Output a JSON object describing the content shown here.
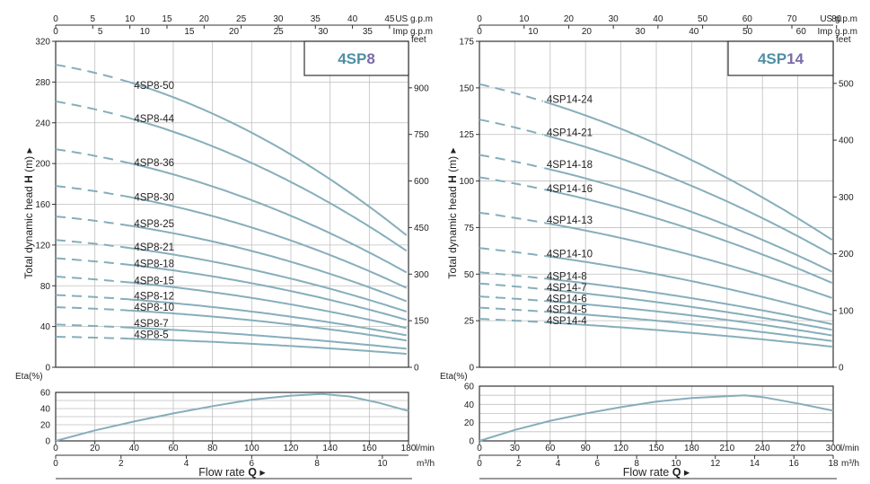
{
  "colors": {
    "curve": "#86aebb",
    "grid": "#bfbfbf",
    "axis": "#333333",
    "title_fill": "#4e8fa3",
    "title_accent": "#7a6ba8"
  },
  "chart_data": [
    {
      "type": "line",
      "title_main": "4SP",
      "title_num": "8",
      "top_axis_1": {
        "ticks": [
          0,
          5,
          10,
          15,
          20,
          25,
          30,
          35,
          40,
          45
        ],
        "unit": "US g.p.m"
      },
      "top_axis_2": {
        "ticks": [
          0,
          5,
          10,
          15,
          20,
          25,
          30,
          35
        ],
        "unit": "Imp g.p.m"
      },
      "y_axis": {
        "label_start": "Total dynamic head",
        "label_bold": "H",
        "label_end": "(m)",
        "arrow": "▸",
        "ylim": [
          0,
          320
        ],
        "ticks": [
          0,
          40,
          80,
          120,
          160,
          200,
          240,
          280,
          320
        ]
      },
      "y2_axis": {
        "unit": "feet",
        "ticks": [
          0,
          150,
          300,
          450,
          600,
          750,
          900
        ]
      },
      "x_axis": {
        "unit_lmin": "l/min",
        "xlim": [
          0,
          180
        ],
        "ticks": [
          0,
          20,
          40,
          60,
          80,
          100,
          120,
          140,
          160,
          180
        ]
      },
      "x2_axis": {
        "unit": "m³/h",
        "ticks": [
          0,
          2,
          4,
          6,
          8,
          10
        ]
      },
      "xlabel_text": "Flow rate",
      "xlabel_bold": "Q",
      "xlabel_arrow": "▸",
      "eta": {
        "label": "Eta(%)",
        "ylim": [
          0,
          60
        ],
        "ticks": [
          0,
          20,
          40,
          60
        ],
        "x": [
          0,
          20,
          40,
          60,
          80,
          100,
          120,
          136,
          150,
          165,
          180
        ],
        "y": [
          0,
          13,
          24,
          34,
          43,
          51,
          56,
          58,
          55,
          47,
          37
        ]
      },
      "curve_start_lmin": 33,
      "label_x_lmin": 40,
      "series": [
        {
          "name": "4SP8-50",
          "shutoff": 297,
          "mid": 240,
          "end": 128,
          "label_h": 277
        },
        {
          "name": "4SP8-44",
          "shutoff": 261,
          "mid": 209,
          "end": 113,
          "label_h": 244
        },
        {
          "name": "4SP8-36",
          "shutoff": 214,
          "mid": 171,
          "end": 92,
          "label_h": 201
        },
        {
          "name": "4SP8-30",
          "shutoff": 178,
          "mid": 143,
          "end": 77,
          "label_h": 167
        },
        {
          "name": "4SP8-25",
          "shutoff": 148,
          "mid": 119,
          "end": 64,
          "label_h": 141
        },
        {
          "name": "4SP8-21",
          "shutoff": 125,
          "mid": 100,
          "end": 54,
          "label_h": 118
        },
        {
          "name": "4SP8-18",
          "shutoff": 107,
          "mid": 86,
          "end": 46,
          "label_h": 102
        },
        {
          "name": "4SP8-15",
          "shutoff": 89,
          "mid": 71,
          "end": 38,
          "label_h": 85
        },
        {
          "name": "4SP8-12",
          "shutoff": 71,
          "mid": 57,
          "end": 31,
          "label_h": 70
        },
        {
          "name": "4SP8-10",
          "shutoff": 59,
          "mid": 48,
          "end": 26,
          "label_h": 59
        },
        {
          "name": "4SP8-7",
          "shutoff": 42,
          "mid": 33,
          "end": 18,
          "label_h": 43
        },
        {
          "name": "4SP8-5",
          "shutoff": 30,
          "mid": 24,
          "end": 13,
          "label_h": 32
        }
      ]
    },
    {
      "type": "line",
      "title_main": "4SP",
      "title_num": "14",
      "top_axis_1": {
        "ticks": [
          0,
          10,
          20,
          30,
          40,
          50,
          60,
          70,
          80
        ],
        "unit": "US g.p.m"
      },
      "top_axis_2": {
        "ticks": [
          0,
          10,
          20,
          30,
          40,
          50,
          60
        ],
        "unit": "Imp g.p.m"
      },
      "y_axis": {
        "label_start": "Total dynamic head",
        "label_bold": "H",
        "label_end": "(m)",
        "arrow": "▸",
        "ylim": [
          0,
          175
        ],
        "ticks": [
          0,
          25,
          50,
          75,
          100,
          125,
          150,
          175
        ]
      },
      "y2_axis": {
        "unit": "feet",
        "ticks": [
          0,
          100,
          200,
          300,
          400,
          500
        ]
      },
      "x_axis": {
        "unit_lmin": "l/min",
        "xlim": [
          0,
          300
        ],
        "ticks": [
          0,
          30,
          60,
          90,
          120,
          150,
          180,
          210,
          240,
          270,
          300
        ]
      },
      "x2_axis": {
        "unit": "m³/h",
        "ticks": [
          0,
          2,
          4,
          6,
          8,
          10,
          12,
          14,
          16,
          18
        ]
      },
      "xlabel_text": "Flow rate",
      "xlabel_bold": "Q",
      "xlabel_arrow": "▸",
      "eta": {
        "label": "Eta(%)",
        "ylim": [
          0,
          60
        ],
        "ticks": [
          0,
          20,
          40,
          60
        ],
        "x": [
          0,
          30,
          60,
          90,
          120,
          150,
          180,
          210,
          225,
          240,
          270,
          300
        ],
        "y": [
          0,
          12,
          22,
          30,
          37,
          43,
          47,
          49,
          50,
          48,
          41,
          33
        ]
      },
      "curve_start_lmin": 55,
      "label_x_lmin": 57,
      "series": [
        {
          "name": "4SP14-24",
          "shutoff": 152,
          "mid": 120,
          "end": 68,
          "label_h": 144
        },
        {
          "name": "4SP14-21",
          "shutoff": 133,
          "mid": 105,
          "end": 60,
          "label_h": 126
        },
        {
          "name": "4SP14-18",
          "shutoff": 114,
          "mid": 90,
          "end": 51,
          "label_h": 109
        },
        {
          "name": "4SP14-16",
          "shutoff": 102,
          "mid": 80,
          "end": 45,
          "label_h": 96
        },
        {
          "name": "4SP14-13",
          "shutoff": 83,
          "mid": 65,
          "end": 37,
          "label_h": 79
        },
        {
          "name": "4SP14-10",
          "shutoff": 64,
          "mid": 50,
          "end": 28,
          "label_h": 61
        },
        {
          "name": "4SP14-8",
          "shutoff": 51,
          "mid": 40,
          "end": 23,
          "label_h": 49
        },
        {
          "name": "4SP14-7",
          "shutoff": 45,
          "mid": 35,
          "end": 20,
          "label_h": 43
        },
        {
          "name": "4SP14-6",
          "shutoff": 38,
          "mid": 30,
          "end": 17,
          "label_h": 37
        },
        {
          "name": "4SP14-5",
          "shutoff": 32,
          "mid": 25,
          "end": 14,
          "label_h": 31
        },
        {
          "name": "4SP14-4",
          "shutoff": 26,
          "mid": 20,
          "end": 11,
          "label_h": 25
        }
      ]
    }
  ]
}
